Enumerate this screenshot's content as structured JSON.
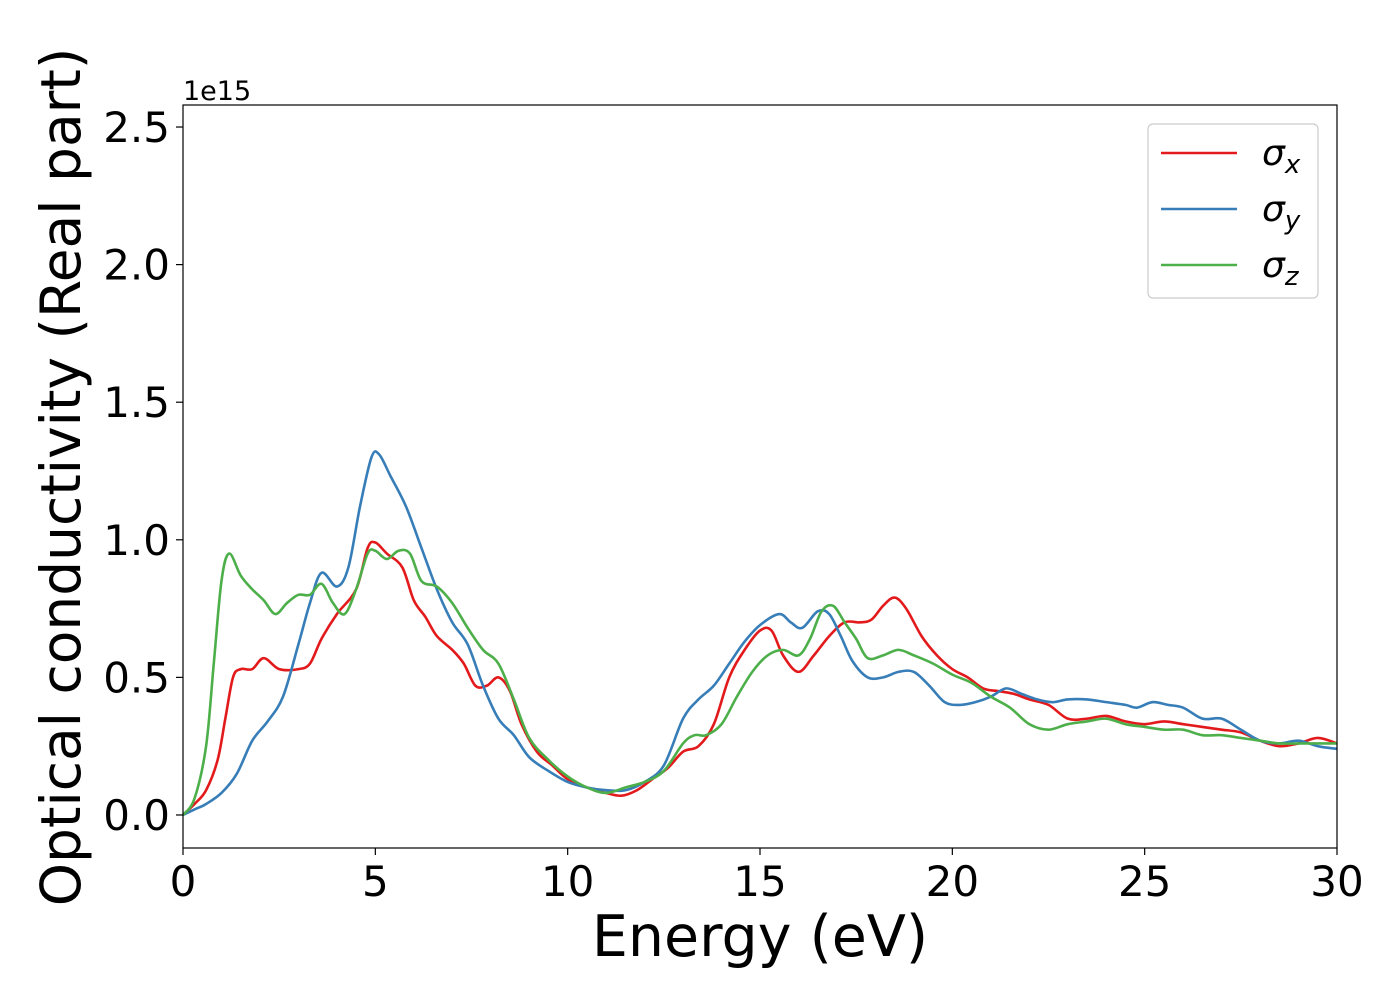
{
  "chart_data": {
    "type": "line",
    "title": "",
    "xlabel": "Energy (eV)",
    "ylabel": "Optical conductivity (Real part)",
    "y_offset_text": "1e15",
    "xlim": [
      0,
      30
    ],
    "ylim": [
      -0.12,
      2.58
    ],
    "x_ticks": [
      0,
      5,
      10,
      15,
      20,
      25,
      30
    ],
    "x_tick_labels": [
      "0",
      "5",
      "10",
      "15",
      "20",
      "25",
      "30"
    ],
    "y_ticks": [
      0.0,
      0.5,
      1.0,
      1.5,
      2.0,
      2.5
    ],
    "y_tick_labels": [
      "0.0",
      "0.5",
      "1.0",
      "1.5",
      "2.0",
      "2.5"
    ],
    "grid": false,
    "legend_position": "top-right",
    "series": [
      {
        "name": "σx",
        "label_base": "σ",
        "label_sub": "x",
        "color": "#e31a1c",
        "points": [
          [
            0,
            0
          ],
          [
            0.3,
            0.04
          ],
          [
            0.6,
            0.09
          ],
          [
            0.9,
            0.2
          ],
          [
            1.1,
            0.35
          ],
          [
            1.3,
            0.5
          ],
          [
            1.5,
            0.53
          ],
          [
            1.8,
            0.53
          ],
          [
            2.1,
            0.57
          ],
          [
            2.5,
            0.53
          ],
          [
            3.0,
            0.53
          ],
          [
            3.3,
            0.55
          ],
          [
            3.6,
            0.64
          ],
          [
            4.0,
            0.73
          ],
          [
            4.5,
            0.82
          ],
          [
            4.8,
            0.97
          ],
          [
            5.0,
            0.99
          ],
          [
            5.3,
            0.95
          ],
          [
            5.7,
            0.9
          ],
          [
            6.0,
            0.78
          ],
          [
            6.3,
            0.72
          ],
          [
            6.6,
            0.65
          ],
          [
            7.0,
            0.6
          ],
          [
            7.3,
            0.55
          ],
          [
            7.6,
            0.47
          ],
          [
            7.9,
            0.47
          ],
          [
            8.2,
            0.5
          ],
          [
            8.5,
            0.45
          ],
          [
            8.8,
            0.33
          ],
          [
            9.2,
            0.23
          ],
          [
            9.6,
            0.18
          ],
          [
            10.0,
            0.13
          ],
          [
            10.5,
            0.1
          ],
          [
            11.0,
            0.08
          ],
          [
            11.4,
            0.07
          ],
          [
            11.8,
            0.09
          ],
          [
            12.2,
            0.13
          ],
          [
            12.6,
            0.17
          ],
          [
            13.0,
            0.23
          ],
          [
            13.4,
            0.25
          ],
          [
            13.8,
            0.33
          ],
          [
            14.2,
            0.5
          ],
          [
            14.6,
            0.6
          ],
          [
            15.0,
            0.67
          ],
          [
            15.3,
            0.67
          ],
          [
            15.6,
            0.58
          ],
          [
            16.0,
            0.52
          ],
          [
            16.4,
            0.58
          ],
          [
            16.8,
            0.65
          ],
          [
            17.2,
            0.7
          ],
          [
            17.6,
            0.7
          ],
          [
            17.9,
            0.71
          ],
          [
            18.2,
            0.76
          ],
          [
            18.5,
            0.79
          ],
          [
            18.8,
            0.75
          ],
          [
            19.2,
            0.65
          ],
          [
            19.6,
            0.58
          ],
          [
            20.0,
            0.53
          ],
          [
            20.4,
            0.5
          ],
          [
            20.8,
            0.46
          ],
          [
            21.2,
            0.45
          ],
          [
            21.6,
            0.44
          ],
          [
            22.0,
            0.42
          ],
          [
            22.5,
            0.4
          ],
          [
            23.0,
            0.35
          ],
          [
            23.5,
            0.35
          ],
          [
            24.0,
            0.36
          ],
          [
            24.5,
            0.34
          ],
          [
            25.0,
            0.33
          ],
          [
            25.5,
            0.34
          ],
          [
            26.0,
            0.33
          ],
          [
            26.5,
            0.32
          ],
          [
            27.0,
            0.31
          ],
          [
            27.5,
            0.3
          ],
          [
            28.0,
            0.27
          ],
          [
            28.5,
            0.25
          ],
          [
            29.0,
            0.26
          ],
          [
            29.5,
            0.28
          ],
          [
            30.0,
            0.26
          ]
        ]
      },
      {
        "name": "σy",
        "label_base": "σ",
        "label_sub": "y",
        "color": "#377eb8",
        "points": [
          [
            0,
            0
          ],
          [
            0.3,
            0.02
          ],
          [
            0.6,
            0.04
          ],
          [
            1.0,
            0.08
          ],
          [
            1.4,
            0.15
          ],
          [
            1.8,
            0.27
          ],
          [
            2.2,
            0.34
          ],
          [
            2.6,
            0.43
          ],
          [
            3.0,
            0.62
          ],
          [
            3.3,
            0.77
          ],
          [
            3.6,
            0.88
          ],
          [
            4.0,
            0.83
          ],
          [
            4.3,
            0.9
          ],
          [
            4.6,
            1.12
          ],
          [
            4.9,
            1.3
          ],
          [
            5.1,
            1.31
          ],
          [
            5.4,
            1.23
          ],
          [
            5.8,
            1.12
          ],
          [
            6.2,
            0.97
          ],
          [
            6.6,
            0.82
          ],
          [
            7.0,
            0.7
          ],
          [
            7.4,
            0.62
          ],
          [
            7.8,
            0.47
          ],
          [
            8.2,
            0.35
          ],
          [
            8.6,
            0.29
          ],
          [
            9.0,
            0.21
          ],
          [
            9.5,
            0.16
          ],
          [
            10.0,
            0.12
          ],
          [
            10.5,
            0.1
          ],
          [
            11.0,
            0.09
          ],
          [
            11.5,
            0.09
          ],
          [
            12.0,
            0.12
          ],
          [
            12.5,
            0.18
          ],
          [
            13.0,
            0.35
          ],
          [
            13.4,
            0.42
          ],
          [
            13.8,
            0.47
          ],
          [
            14.2,
            0.55
          ],
          [
            14.6,
            0.63
          ],
          [
            15.0,
            0.69
          ],
          [
            15.5,
            0.73
          ],
          [
            15.8,
            0.7
          ],
          [
            16.1,
            0.68
          ],
          [
            16.5,
            0.74
          ],
          [
            16.8,
            0.73
          ],
          [
            17.1,
            0.65
          ],
          [
            17.4,
            0.56
          ],
          [
            17.8,
            0.5
          ],
          [
            18.2,
            0.5
          ],
          [
            18.6,
            0.52
          ],
          [
            19.0,
            0.52
          ],
          [
            19.4,
            0.47
          ],
          [
            19.8,
            0.41
          ],
          [
            20.2,
            0.4
          ],
          [
            20.6,
            0.41
          ],
          [
            21.0,
            0.43
          ],
          [
            21.4,
            0.46
          ],
          [
            21.8,
            0.44
          ],
          [
            22.2,
            0.42
          ],
          [
            22.6,
            0.41
          ],
          [
            23.0,
            0.42
          ],
          [
            23.5,
            0.42
          ],
          [
            24.0,
            0.41
          ],
          [
            24.5,
            0.4
          ],
          [
            24.8,
            0.39
          ],
          [
            25.2,
            0.41
          ],
          [
            25.6,
            0.4
          ],
          [
            26.0,
            0.39
          ],
          [
            26.5,
            0.35
          ],
          [
            27.0,
            0.35
          ],
          [
            27.5,
            0.31
          ],
          [
            28.0,
            0.27
          ],
          [
            28.5,
            0.26
          ],
          [
            29.0,
            0.27
          ],
          [
            29.5,
            0.25
          ],
          [
            30.0,
            0.24
          ]
        ]
      },
      {
        "name": "σz",
        "label_base": "σ",
        "label_sub": "z",
        "color": "#4daf4a",
        "points": [
          [
            0,
            0
          ],
          [
            0.3,
            0.06
          ],
          [
            0.6,
            0.25
          ],
          [
            0.8,
            0.55
          ],
          [
            1.0,
            0.85
          ],
          [
            1.2,
            0.95
          ],
          [
            1.5,
            0.87
          ],
          [
            1.8,
            0.82
          ],
          [
            2.1,
            0.78
          ],
          [
            2.4,
            0.73
          ],
          [
            2.7,
            0.77
          ],
          [
            3.0,
            0.8
          ],
          [
            3.3,
            0.8
          ],
          [
            3.6,
            0.84
          ],
          [
            3.9,
            0.77
          ],
          [
            4.2,
            0.73
          ],
          [
            4.5,
            0.82
          ],
          [
            4.8,
            0.95
          ],
          [
            5.0,
            0.96
          ],
          [
            5.3,
            0.93
          ],
          [
            5.6,
            0.96
          ],
          [
            5.9,
            0.95
          ],
          [
            6.2,
            0.85
          ],
          [
            6.6,
            0.83
          ],
          [
            7.0,
            0.77
          ],
          [
            7.4,
            0.68
          ],
          [
            7.8,
            0.6
          ],
          [
            8.2,
            0.55
          ],
          [
            8.6,
            0.42
          ],
          [
            9.0,
            0.28
          ],
          [
            9.5,
            0.2
          ],
          [
            10.0,
            0.14
          ],
          [
            10.5,
            0.1
          ],
          [
            11.0,
            0.08
          ],
          [
            11.5,
            0.1
          ],
          [
            12.0,
            0.12
          ],
          [
            12.5,
            0.16
          ],
          [
            13.0,
            0.26
          ],
          [
            13.3,
            0.29
          ],
          [
            13.6,
            0.29
          ],
          [
            14.0,
            0.33
          ],
          [
            14.4,
            0.43
          ],
          [
            14.8,
            0.52
          ],
          [
            15.2,
            0.58
          ],
          [
            15.6,
            0.6
          ],
          [
            16.0,
            0.58
          ],
          [
            16.3,
            0.64
          ],
          [
            16.6,
            0.74
          ],
          [
            16.9,
            0.76
          ],
          [
            17.2,
            0.7
          ],
          [
            17.5,
            0.64
          ],
          [
            17.8,
            0.57
          ],
          [
            18.2,
            0.58
          ],
          [
            18.6,
            0.6
          ],
          [
            19.0,
            0.58
          ],
          [
            19.5,
            0.55
          ],
          [
            20.0,
            0.51
          ],
          [
            20.5,
            0.48
          ],
          [
            21.0,
            0.43
          ],
          [
            21.5,
            0.39
          ],
          [
            22.0,
            0.33
          ],
          [
            22.5,
            0.31
          ],
          [
            23.0,
            0.33
          ],
          [
            23.5,
            0.34
          ],
          [
            24.0,
            0.35
          ],
          [
            24.5,
            0.33
          ],
          [
            25.0,
            0.32
          ],
          [
            25.5,
            0.31
          ],
          [
            26.0,
            0.31
          ],
          [
            26.5,
            0.29
          ],
          [
            27.0,
            0.29
          ],
          [
            27.5,
            0.28
          ],
          [
            28.0,
            0.27
          ],
          [
            28.5,
            0.26
          ],
          [
            29.0,
            0.26
          ],
          [
            29.5,
            0.26
          ],
          [
            30.0,
            0.26
          ]
        ]
      }
    ]
  }
}
